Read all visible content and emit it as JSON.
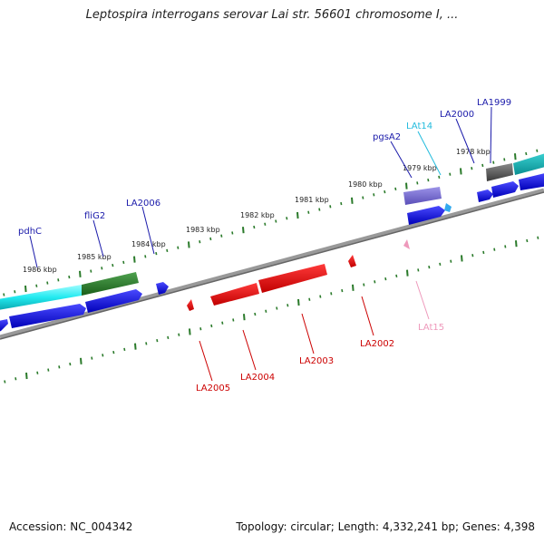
{
  "title": "Leptospira interrogans serovar Lai str. 56601 chromosome I, ...",
  "footer": {
    "accession": "Accession: NC_004342",
    "summary": "Topology: circular; Length: 4,332,241 bp; Genes: 4,398"
  },
  "colors": {
    "label_forward": "#1a1aaa",
    "label_reverse": "#cc0000",
    "label_cyan": "#22bbdd",
    "label_pink": "#ee99bb",
    "tick": "#2a7a2a",
    "backbone": "#888888"
  },
  "scale": {
    "ticks": [
      {
        "label": "1986 kbp",
        "pos_kbp": 1986
      },
      {
        "label": "1985 kbp",
        "pos_kbp": 1985
      },
      {
        "label": "1984 kbp",
        "pos_kbp": 1984
      },
      {
        "label": "1983 kbp",
        "pos_kbp": 1983
      },
      {
        "label": "1982 kbp",
        "pos_kbp": 1982
      },
      {
        "label": "1981 kbp",
        "pos_kbp": 1981
      },
      {
        "label": "1980 kbp",
        "pos_kbp": 1980
      },
      {
        "label": "1979 kbp",
        "pos_kbp": 1979
      },
      {
        "label": "1978 kbp",
        "pos_kbp": 1978
      }
    ]
  },
  "genes": {
    "forward": [
      {
        "label": "pdhC",
        "color": "#1a1aaa"
      },
      {
        "label": "fliG2",
        "color": "#1a1aaa"
      },
      {
        "label": "LA2006",
        "color": "#1a1aaa"
      },
      {
        "label": "pgsA2",
        "color": "#1a1aaa"
      },
      {
        "label": "LAt14",
        "color": "#22bbdd"
      },
      {
        "label": "LA2000",
        "color": "#1a1aaa"
      },
      {
        "label": "LA1999",
        "color": "#1a1aaa"
      }
    ],
    "reverse": [
      {
        "label": "LA2005",
        "color": "#cc0000"
      },
      {
        "label": "LA2004",
        "color": "#cc0000"
      },
      {
        "label": "LA2003",
        "color": "#cc0000"
      },
      {
        "label": "LA2002",
        "color": "#cc0000"
      },
      {
        "label": "LAt15",
        "color": "#ee99bb"
      }
    ]
  }
}
